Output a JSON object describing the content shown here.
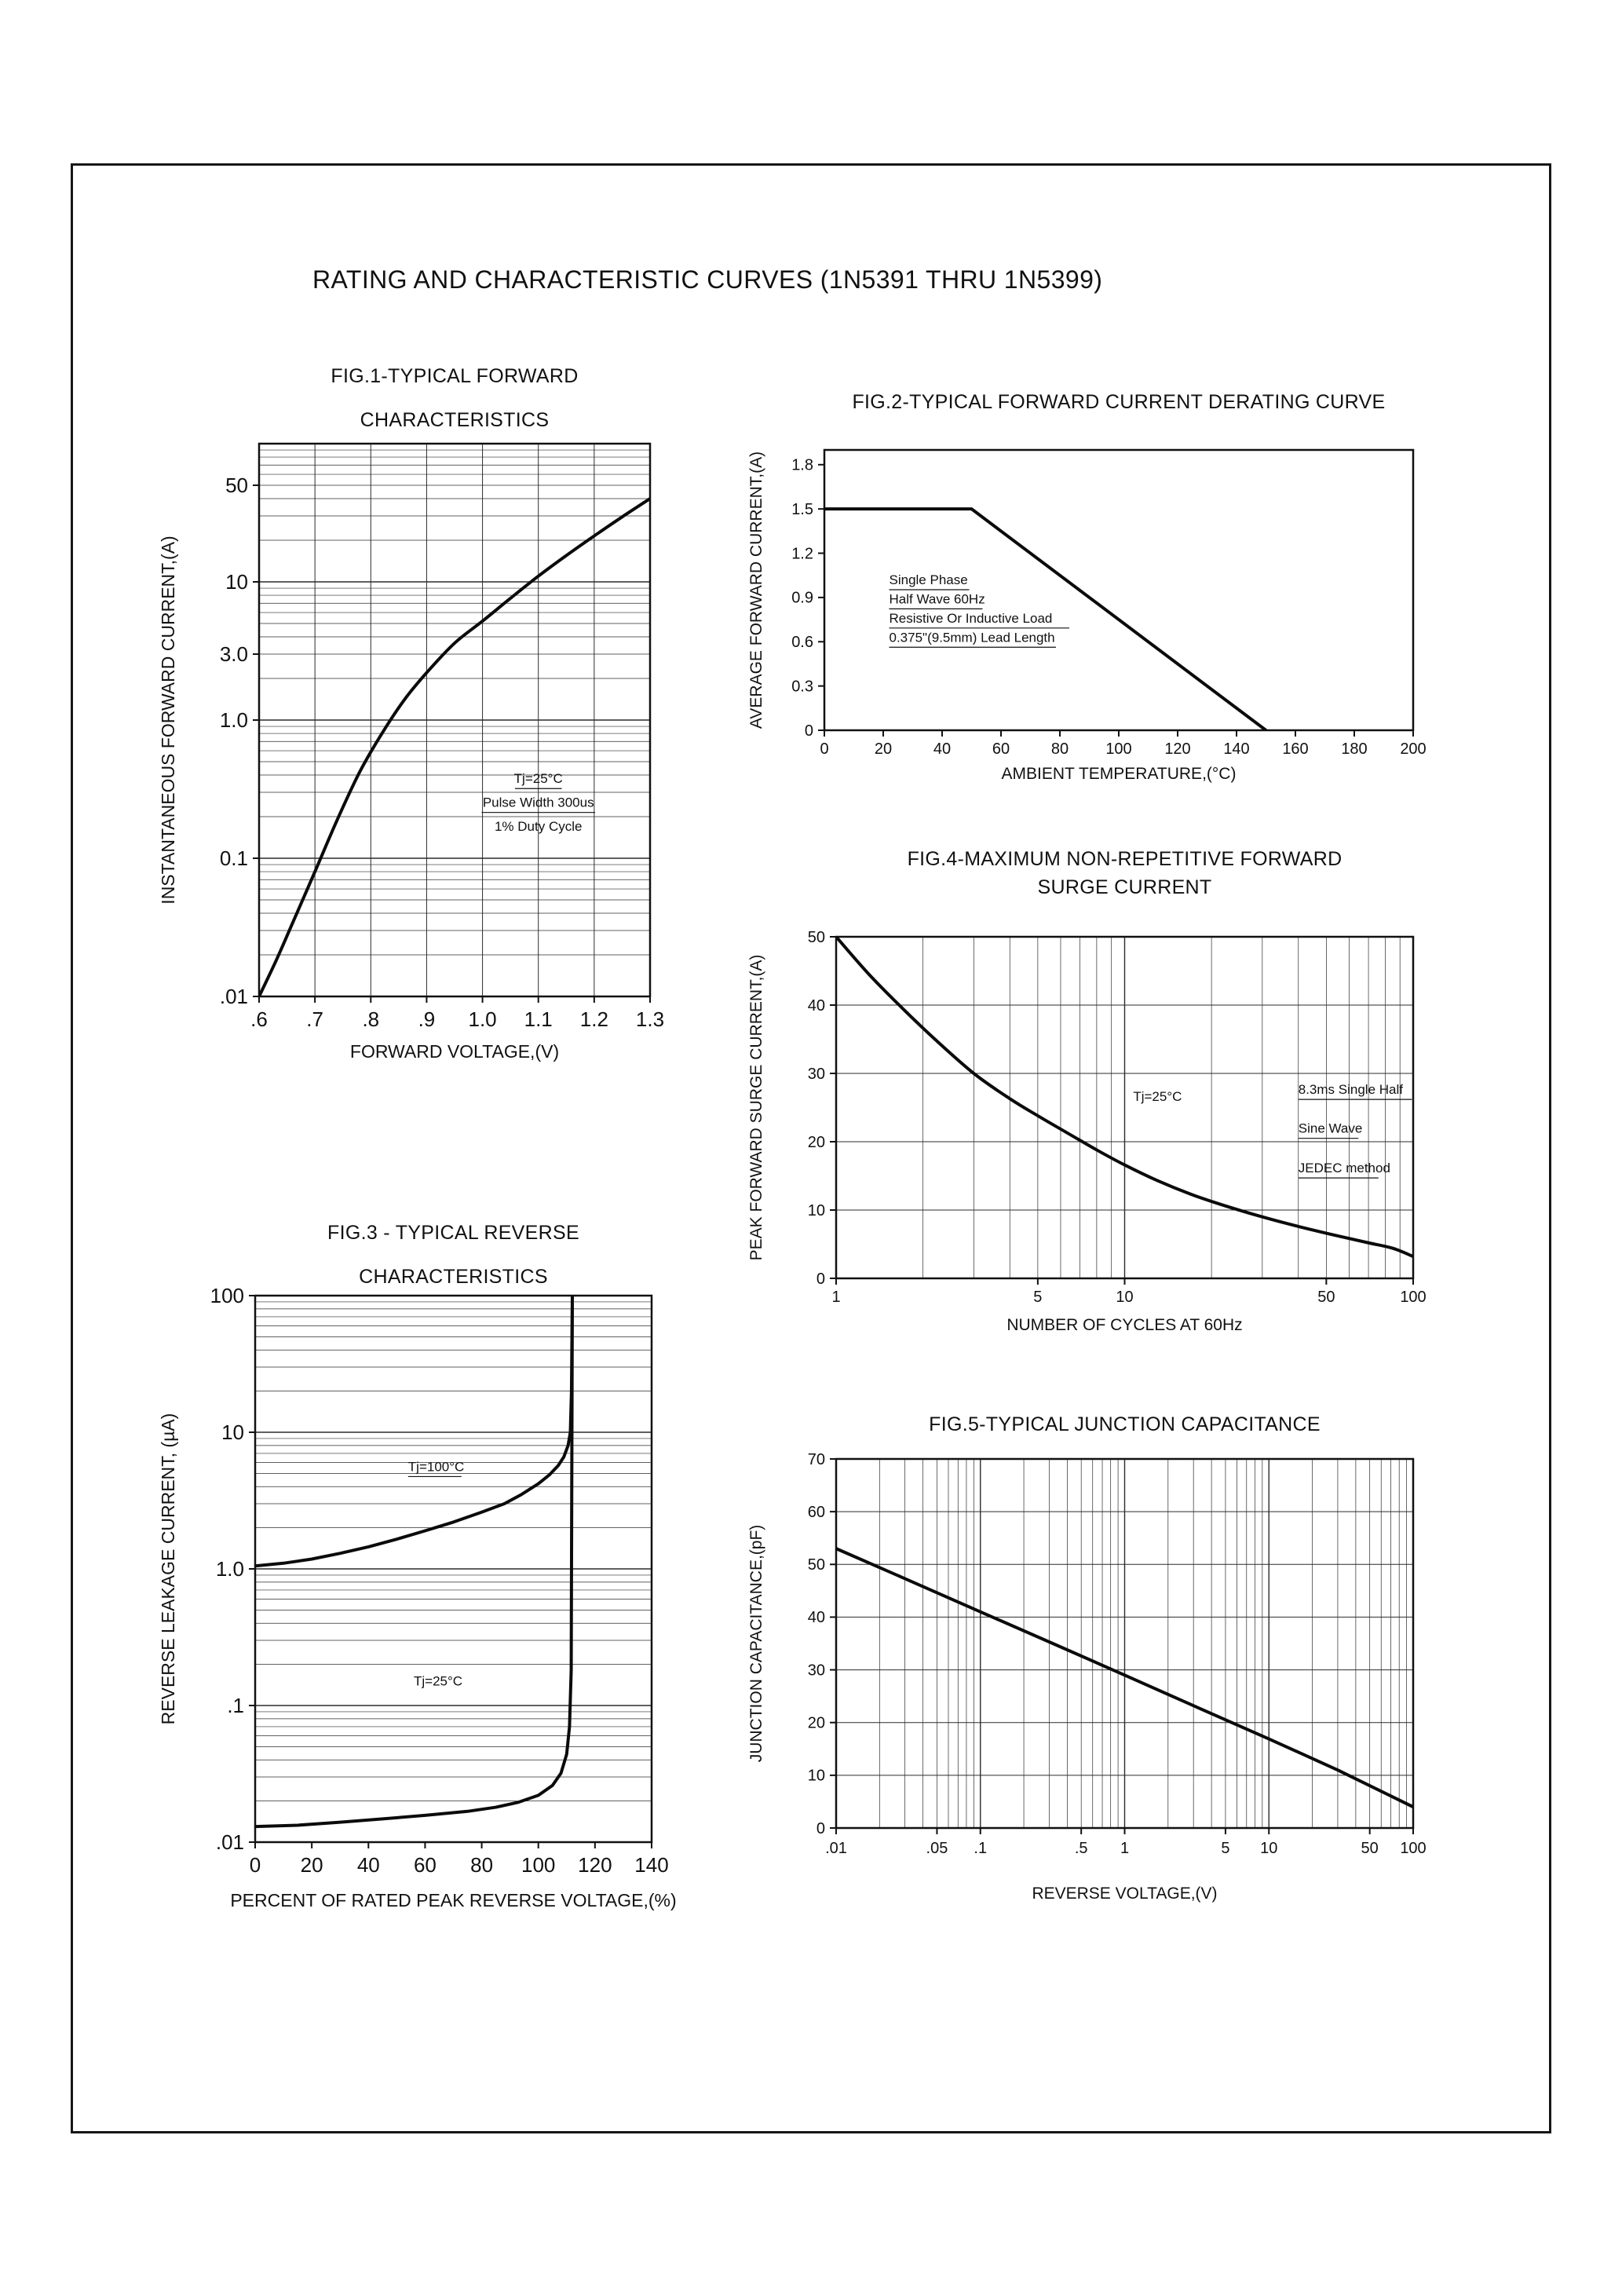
{
  "page": {
    "title": "RATING AND CHARACTERISTIC CURVES (1N5391 THRU 1N5399)"
  },
  "chart_data": [
    {
      "id": "fig1",
      "type": "line",
      "title_lines": [
        "FIG.1-TYPICAL FORWARD",
        "CHARACTERISTICS"
      ],
      "xlabel": "FORWARD VOLTAGE,(V)",
      "ylabel": "INSTANTANEOUS FORWARD CURRENT,(A)",
      "x": {
        "scale": "linear",
        "min": 0.6,
        "max": 1.3,
        "grid": "ticks",
        "ticks": [
          {
            "v": 0.6,
            "label": ".6"
          },
          {
            "v": 0.7,
            "label": ".7"
          },
          {
            "v": 0.8,
            "label": ".8"
          },
          {
            "v": 0.9,
            "label": ".9"
          },
          {
            "v": 1,
            "label": "1.0"
          },
          {
            "v": 1.1,
            "label": "1.1"
          },
          {
            "v": 1.2,
            "label": "1.2"
          },
          {
            "v": 1.3,
            "label": "1.3"
          }
        ]
      },
      "y": {
        "scale": "log",
        "min": 0.01,
        "max": 100,
        "grid": "log",
        "ticks": [
          {
            "v": 50,
            "label": "50"
          },
          {
            "v": 10,
            "label": "10"
          },
          {
            "v": 3,
            "label": "3.0"
          },
          {
            "v": 1,
            "label": "1.0"
          },
          {
            "v": 0.1,
            "label": "0.1"
          },
          {
            "v": 0.01,
            "label": ".01"
          }
        ]
      },
      "series": [
        {
          "name": "instantaneous-forward-current",
          "smooth": true,
          "points": [
            [
              0.6,
              0.01
            ],
            [
              0.63,
              0.018
            ],
            [
              0.66,
              0.034
            ],
            [
              0.7,
              0.08
            ],
            [
              0.74,
              0.19
            ],
            [
              0.78,
              0.42
            ],
            [
              0.82,
              0.8
            ],
            [
              0.86,
              1.4
            ],
            [
              0.9,
              2.2
            ],
            [
              0.95,
              3.6
            ],
            [
              1,
              5.2
            ],
            [
              1.05,
              7.6
            ],
            [
              1.1,
              11
            ],
            [
              1.15,
              15.5
            ],
            [
              1.2,
              21.5
            ],
            [
              1.25,
              29.5
            ],
            [
              1.3,
              40
            ]
          ]
        }
      ],
      "annotations": [
        {
          "x": 1.1,
          "y": 0.35,
          "text": "Tj=25°C",
          "anchor": "middle",
          "underline": true
        },
        {
          "x": 1.1,
          "y": 0.235,
          "text": "Pulse Width 300us",
          "anchor": "middle",
          "underline": true
        },
        {
          "x": 1.1,
          "y": 0.158,
          "text": "1% Duty Cycle",
          "anchor": "middle",
          "underline": false
        }
      ]
    },
    {
      "id": "fig2",
      "type": "line",
      "title_lines": [
        "FIG.2-TYPICAL FORWARD CURRENT DERATING CURVE"
      ],
      "xlabel": "AMBIENT TEMPERATURE,(°C)",
      "ylabel": "AVERAGE FORWARD CURRENT,(A)",
      "x": {
        "scale": "linear",
        "min": 0,
        "max": 200,
        "grid": "none",
        "ticks": [
          {
            "v": 0,
            "label": "0"
          },
          {
            "v": 20,
            "label": "20"
          },
          {
            "v": 40,
            "label": "40"
          },
          {
            "v": 60,
            "label": "60"
          },
          {
            "v": 80,
            "label": "80"
          },
          {
            "v": 100,
            "label": "100"
          },
          {
            "v": 120,
            "label": "120"
          },
          {
            "v": 140,
            "label": "140"
          },
          {
            "v": 160,
            "label": "160"
          },
          {
            "v": 180,
            "label": "180"
          },
          {
            "v": 200,
            "label": "200"
          }
        ]
      },
      "y": {
        "scale": "linear",
        "min": 0,
        "max": 1.9,
        "grid": "none",
        "ticks": [
          {
            "v": 1.8,
            "label": "1.8"
          },
          {
            "v": 1.5,
            "label": "1.5"
          },
          {
            "v": 1.2,
            "label": "1.2"
          },
          {
            "v": 0.9,
            "label": "0.9"
          },
          {
            "v": 0.6,
            "label": "0.6"
          },
          {
            "v": 0.3,
            "label": "0.3"
          },
          {
            "v": 0,
            "label": "0"
          }
        ]
      },
      "series": [
        {
          "name": "derating-curve",
          "smooth": false,
          "points": [
            [
              0,
              1.5
            ],
            [
              50,
              1.5
            ],
            [
              150,
              0
            ]
          ]
        }
      ],
      "annotations": [
        {
          "x": 22,
          "y": 0.99,
          "text": "Single Phase",
          "anchor": "start",
          "underline": true
        },
        {
          "x": 22,
          "y": 0.86,
          "text": "Half Wave 60Hz",
          "anchor": "start",
          "underline": true
        },
        {
          "x": 22,
          "y": 0.73,
          "text": "Resistive Or Inductive Load",
          "anchor": "start",
          "underline": true
        },
        {
          "x": 22,
          "y": 0.6,
          "text": "0.375\"(9.5mm) Lead Length",
          "anchor": "start",
          "underline": true
        }
      ]
    },
    {
      "id": "fig3",
      "type": "line",
      "title_lines": [
        "FIG.3 - TYPICAL REVERSE",
        "CHARACTERISTICS"
      ],
      "xlabel": "PERCENT OF RATED PEAK REVERSE VOLTAGE,(%)",
      "ylabel": "REVERSE LEAKAGE CURRENT, (µA)",
      "x": {
        "scale": "linear",
        "min": 0,
        "max": 140,
        "grid": "none",
        "ticks": [
          {
            "v": 0,
            "label": "0"
          },
          {
            "v": 20,
            "label": "20"
          },
          {
            "v": 40,
            "label": "40"
          },
          {
            "v": 60,
            "label": "60"
          },
          {
            "v": 80,
            "label": "80"
          },
          {
            "v": 100,
            "label": "100"
          },
          {
            "v": 120,
            "label": "120"
          },
          {
            "v": 140,
            "label": "140"
          }
        ]
      },
      "y": {
        "scale": "log",
        "min": 0.01,
        "max": 100,
        "grid": "log",
        "ticks": [
          {
            "v": 100,
            "label": "100"
          },
          {
            "v": 10,
            "label": "10"
          },
          {
            "v": 1,
            "label": "1.0"
          },
          {
            "v": 0.1,
            "label": ".1"
          },
          {
            "v": 0.01,
            "label": ".01"
          }
        ]
      },
      "series": [
        {
          "name": "reverse-leakage-tj100",
          "smooth": false,
          "points": [
            [
              0,
              1.05
            ],
            [
              10,
              1.1
            ],
            [
              20,
              1.18
            ],
            [
              30,
              1.3
            ],
            [
              40,
              1.45
            ],
            [
              50,
              1.65
            ],
            [
              60,
              1.9
            ],
            [
              70,
              2.2
            ],
            [
              80,
              2.6
            ],
            [
              88,
              3
            ],
            [
              94,
              3.5
            ],
            [
              100,
              4.2
            ],
            [
              104,
              4.9
            ],
            [
              107,
              5.7
            ],
            [
              109,
              6.6
            ],
            [
              110.5,
              8
            ],
            [
              111.3,
              10
            ],
            [
              111.7,
              20
            ],
            [
              112,
              100
            ]
          ]
        },
        {
          "name": "reverse-leakage-tj25",
          "smooth": false,
          "points": [
            [
              0,
              0.013
            ],
            [
              15,
              0.0133
            ],
            [
              30,
              0.014
            ],
            [
              45,
              0.0148
            ],
            [
              60,
              0.0157
            ],
            [
              75,
              0.0168
            ],
            [
              85,
              0.018
            ],
            [
              93,
              0.0196
            ],
            [
              100,
              0.022
            ],
            [
              105,
              0.026
            ],
            [
              108,
              0.032
            ],
            [
              110,
              0.044
            ],
            [
              111,
              0.07
            ],
            [
              111.6,
              0.18
            ],
            [
              112,
              100
            ]
          ]
        }
      ],
      "annotations": [
        {
          "x": 54,
          "y": 5.2,
          "text": "Tj=100°C",
          "anchor": "start",
          "underline": true
        },
        {
          "x": 56,
          "y": 0.14,
          "text": "Tj=25°C",
          "anchor": "start",
          "underline": false
        }
      ]
    },
    {
      "id": "fig4",
      "type": "line",
      "title_lines": [
        "FIG.4-MAXIMUM NON-REPETITIVE FORWARD",
        "SURGE CURRENT"
      ],
      "xlabel": "NUMBER OF CYCLES AT 60Hz",
      "ylabel": "PEAK FORWARD SURGE CURRENT,(A)",
      "x": {
        "scale": "log",
        "min": 1,
        "max": 100,
        "grid": "log",
        "ticks": [
          {
            "v": 1,
            "label": "1"
          },
          {
            "v": 5,
            "label": "5"
          },
          {
            "v": 10,
            "label": "10"
          },
          {
            "v": 50,
            "label": "50"
          },
          {
            "v": 100,
            "label": "100"
          }
        ]
      },
      "y": {
        "scale": "linear",
        "min": 0,
        "max": 50,
        "grid": "ticks",
        "ticks": [
          {
            "v": 50,
            "label": "50"
          },
          {
            "v": 40,
            "label": "40"
          },
          {
            "v": 30,
            "label": "30"
          },
          {
            "v": 20,
            "label": "20"
          },
          {
            "v": 10,
            "label": "10"
          },
          {
            "v": 0,
            "label": "0"
          }
        ]
      },
      "series": [
        {
          "name": "surge-current",
          "smooth": true,
          "points": [
            [
              1,
              50
            ],
            [
              1.3,
              44.5
            ],
            [
              1.7,
              39.5
            ],
            [
              2.2,
              35
            ],
            [
              3,
              30
            ],
            [
              4,
              26.3
            ],
            [
              5,
              23.8
            ],
            [
              6.5,
              21
            ],
            [
              8,
              18.8
            ],
            [
              10,
              16.6
            ],
            [
              13,
              14.3
            ],
            [
              17,
              12.3
            ],
            [
              22,
              10.7
            ],
            [
              30,
              9
            ],
            [
              40,
              7.6
            ],
            [
              55,
              6.2
            ],
            [
              70,
              5.2
            ],
            [
              85,
              4.4
            ],
            [
              100,
              3.2
            ]
          ]
        }
      ],
      "annotations": [
        {
          "x": 13,
          "y": 26,
          "text": "Tj=25°C",
          "anchor": "middle",
          "underline": false
        },
        {
          "x": 40,
          "y": 27,
          "text": "8.3ms Single Half",
          "anchor": "start",
          "underline": true
        },
        {
          "x": 40,
          "y": 21.3,
          "text": "Sine Wave",
          "anchor": "start",
          "underline": true
        },
        {
          "x": 40,
          "y": 15.5,
          "text": "JEDEC method",
          "anchor": "start",
          "underline": true
        }
      ]
    },
    {
      "id": "fig5",
      "type": "line",
      "title_lines": [
        "FIG.5-TYPICAL JUNCTION CAPACITANCE"
      ],
      "xlabel": "REVERSE VOLTAGE,(V)",
      "ylabel": "JUNCTION CAPACITANCE,(pF)",
      "x": {
        "scale": "log",
        "min": 0.01,
        "max": 100,
        "grid": "log",
        "ticks": [
          {
            "v": 0.01,
            "label": ".01"
          },
          {
            "v": 0.05,
            "label": ".05"
          },
          {
            "v": 0.1,
            "label": ".1"
          },
          {
            "v": 0.5,
            "label": ".5"
          },
          {
            "v": 1,
            "label": "1"
          },
          {
            "v": 5,
            "label": "5"
          },
          {
            "v": 10,
            "label": "10"
          },
          {
            "v": 50,
            "label": "50"
          },
          {
            "v": 100,
            "label": "100"
          }
        ]
      },
      "y": {
        "scale": "linear",
        "min": 0,
        "max": 70,
        "grid": "ticks",
        "ticks": [
          {
            "v": 70,
            "label": "70"
          },
          {
            "v": 60,
            "label": "60"
          },
          {
            "v": 50,
            "label": "50"
          },
          {
            "v": 40,
            "label": "40"
          },
          {
            "v": 30,
            "label": "30"
          },
          {
            "v": 20,
            "label": "20"
          },
          {
            "v": 10,
            "label": "10"
          },
          {
            "v": 0,
            "label": "0"
          }
        ]
      },
      "series": [
        {
          "name": "junction-capacitance",
          "smooth": false,
          "points": [
            [
              0.01,
              53
            ],
            [
              0.03,
              47.3
            ],
            [
              0.1,
              41
            ],
            [
              0.3,
              35.3
            ],
            [
              1,
              29
            ],
            [
              3,
              23.2
            ],
            [
              10,
              16.9
            ],
            [
              30,
              11
            ],
            [
              100,
              4
            ]
          ]
        }
      ],
      "annotations": []
    }
  ]
}
